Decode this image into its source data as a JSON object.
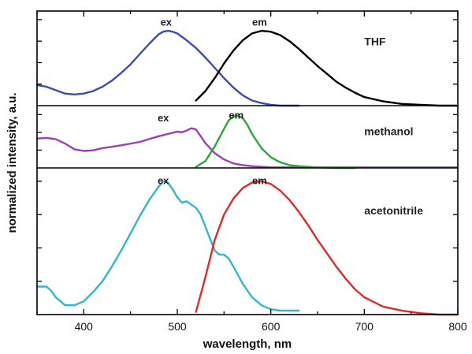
{
  "chart_data": {
    "type": "line",
    "xlabel": "wavelength, nm",
    "ylabel": "normalized intensity, a.u.",
    "xlim": [
      350,
      800
    ],
    "x_ticks": [
      400,
      500,
      600,
      700,
      800
    ],
    "x_tick_labels": [
      "400",
      "500",
      "600",
      "700",
      "800"
    ],
    "grid": false,
    "panels": [
      {
        "name": "THF",
        "ylim": [
          0,
          1.1
        ],
        "series": [
          {
            "name": "ex",
            "color": "#3a4ea8",
            "x": [
              350,
              360,
              370,
              380,
              390,
              400,
              410,
              420,
              430,
              440,
              450,
              460,
              470,
              480,
              485,
              490,
              495,
              500,
              510,
              520,
              530,
              540,
              550,
              560,
              570,
              580,
              590,
              600,
              610,
              620,
              630
            ],
            "y": [
              0.24,
              0.22,
              0.18,
              0.14,
              0.13,
              0.14,
              0.17,
              0.22,
              0.29,
              0.38,
              0.48,
              0.6,
              0.72,
              0.83,
              0.86,
              0.87,
              0.86,
              0.84,
              0.76,
              0.67,
              0.56,
              0.44,
              0.32,
              0.21,
              0.12,
              0.06,
              0.03,
              0.01,
              0.0,
              0.0,
              0.0
            ]
          },
          {
            "name": "em",
            "color": "#000000",
            "x": [
              520,
              530,
              540,
              550,
              560,
              570,
              580,
              590,
              600,
              610,
              620,
              630,
              640,
              650,
              660,
              670,
              680,
              690,
              700,
              720,
              740,
              760,
              780,
              800
            ],
            "y": [
              0.06,
              0.17,
              0.32,
              0.49,
              0.64,
              0.76,
              0.84,
              0.87,
              0.86,
              0.82,
              0.75,
              0.66,
              0.56,
              0.46,
              0.37,
              0.28,
              0.21,
              0.15,
              0.1,
              0.05,
              0.02,
              0.01,
              0.0,
              0.0
            ]
          }
        ]
      },
      {
        "name": "methanol",
        "ylim": [
          0,
          1.1
        ],
        "series": [
          {
            "name": "ex",
            "color": "#9b3fb5",
            "x": [
              350,
              360,
              370,
              380,
              390,
              400,
              410,
              420,
              440,
              460,
              480,
              500,
              505,
              510,
              515,
              520,
              525,
              530,
              540,
              550,
              560,
              570,
              580,
              590,
              600,
              620,
              640,
              660,
              680,
              700,
              720,
              740,
              760,
              780,
              800
            ],
            "y": [
              0.52,
              0.53,
              0.51,
              0.43,
              0.33,
              0.3,
              0.31,
              0.35,
              0.4,
              0.46,
              0.56,
              0.64,
              0.63,
              0.66,
              0.7,
              0.68,
              0.56,
              0.44,
              0.26,
              0.15,
              0.08,
              0.05,
              0.03,
              0.02,
              0.01,
              0.01,
              0.01,
              0.01,
              0.01,
              0.01,
              0.01,
              0.01,
              0.01,
              0.01,
              0.01
            ]
          },
          {
            "name": "em",
            "color": "#2aa63a",
            "x": [
              520,
              530,
              540,
              550,
              555,
              560,
              565,
              570,
              575,
              580,
              590,
              600,
              610,
              620,
              630,
              640,
              650,
              670,
              690
            ],
            "y": [
              0.02,
              0.12,
              0.38,
              0.69,
              0.84,
              0.91,
              0.92,
              0.88,
              0.76,
              0.6,
              0.35,
              0.19,
              0.1,
              0.05,
              0.03,
              0.02,
              0.01,
              0.0,
              0.0
            ]
          }
        ]
      },
      {
        "name": "acetonitrile",
        "ylim": [
          0,
          1.1
        ],
        "series": [
          {
            "name": "ex",
            "color": "#30b8c8",
            "x": [
              350,
              360,
              365,
              370,
              380,
              390,
              400,
              410,
              420,
              430,
              440,
              450,
              460,
              470,
              480,
              485,
              490,
              495,
              500,
              505,
              510,
              520,
              525,
              530,
              540,
              545,
              550,
              555,
              560,
              570,
              580,
              590,
              600,
              610,
              620,
              630
            ],
            "y": [
              0.21,
              0.21,
              0.18,
              0.13,
              0.07,
              0.07,
              0.1,
              0.17,
              0.25,
              0.36,
              0.48,
              0.61,
              0.74,
              0.86,
              0.96,
              1.0,
              0.99,
              0.94,
              0.88,
              0.84,
              0.85,
              0.8,
              0.75,
              0.66,
              0.48,
              0.45,
              0.45,
              0.42,
              0.36,
              0.23,
              0.13,
              0.07,
              0.04,
              0.03,
              0.03,
              0.03
            ]
          },
          {
            "name": "em",
            "color": "#e02a2a",
            "x": [
              520,
              530,
              540,
              550,
              560,
              570,
              580,
              590,
              600,
              610,
              620,
              630,
              640,
              650,
              660,
              670,
              680,
              690,
              700,
              720,
              740,
              760,
              780,
              800
            ],
            "y": [
              0.02,
              0.28,
              0.56,
              0.75,
              0.87,
              0.95,
              0.99,
              1.0,
              0.98,
              0.93,
              0.86,
              0.77,
              0.67,
              0.56,
              0.46,
              0.36,
              0.27,
              0.19,
              0.13,
              0.06,
              0.03,
              0.01,
              0.0,
              0.0
            ]
          }
        ]
      }
    ],
    "annotations": [
      {
        "panel": 0,
        "text": "ex",
        "x": 488,
        "y": 0.93
      },
      {
        "panel": 0,
        "text": "em",
        "x": 588,
        "y": 0.93
      },
      {
        "panel": 0,
        "text": "THF",
        "x": 700,
        "y": 0.7
      },
      {
        "panel": 1,
        "text": "ex",
        "x": 485,
        "y": 0.82
      },
      {
        "panel": 1,
        "text": "em",
        "x": 563,
        "y": 0.87
      },
      {
        "panel": 1,
        "text": "methanol",
        "x": 700,
        "y": 0.58
      },
      {
        "panel": 2,
        "text": "ex",
        "x": 485,
        "y": 0.98
      },
      {
        "panel": 2,
        "text": "em",
        "x": 588,
        "y": 0.98
      },
      {
        "panel": 2,
        "text": "acetonitrile",
        "x": 700,
        "y": 0.75
      }
    ]
  }
}
